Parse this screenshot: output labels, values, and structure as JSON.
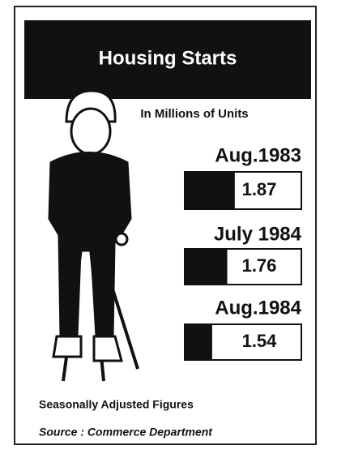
{
  "chart_data": {
    "type": "bar",
    "orientation": "horizontal",
    "title": "Housing Starts",
    "subtitle": "In Millions of Units",
    "categories": [
      "Aug.1983",
      "July 1984",
      "Aug.1984"
    ],
    "values": [
      1.87,
      1.76,
      1.54
    ],
    "color": "#111111",
    "xlim": [
      1.14,
      2.84
    ],
    "notes": [
      "Seasonally Adjusted Figures",
      "Source : Commerce Department"
    ]
  }
}
